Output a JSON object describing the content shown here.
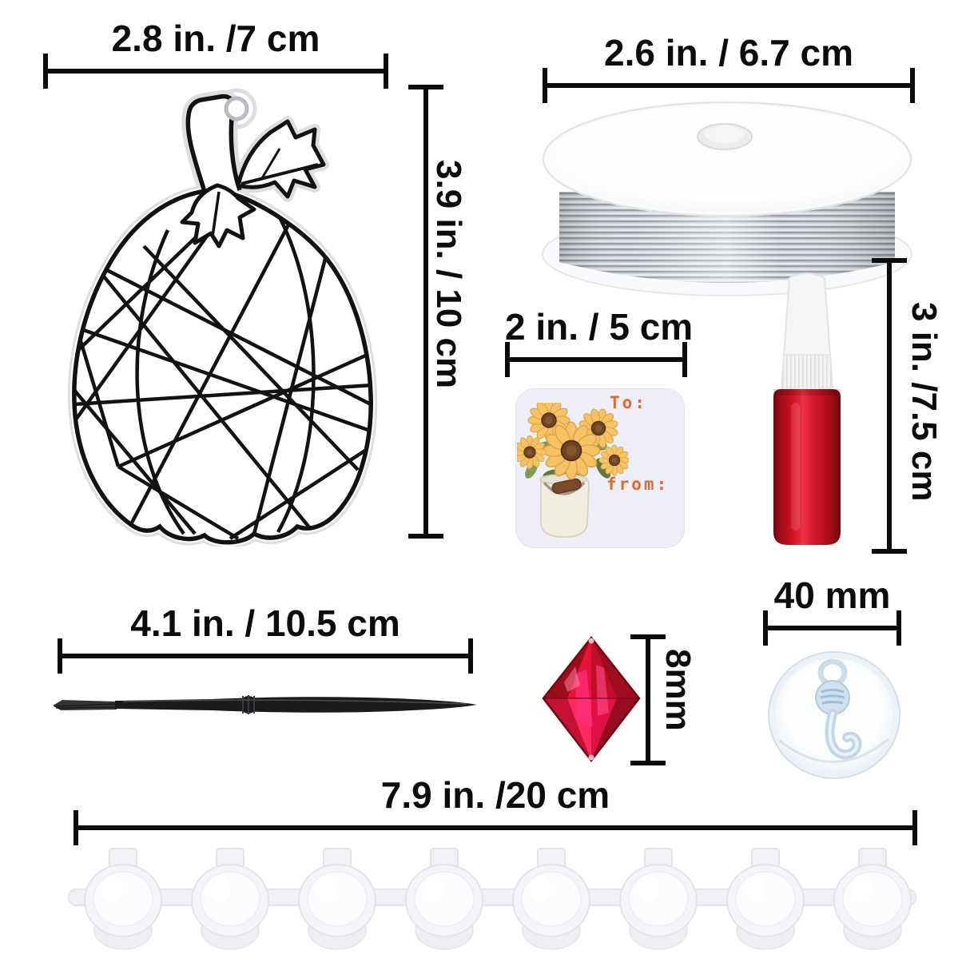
{
  "colors": {
    "background": "#ffffff",
    "dimension_ink": "#0c0c0c",
    "bead_red": "#e01245",
    "glue_body_red": "#d31222",
    "gift_tag_background": "#edeef8",
    "gift_tag_text_orange": "#dd6a2e",
    "wire_silver": "#c9ced4",
    "suction_hook_tint": "#cfe0ef",
    "brush_black": "#1b1b1d"
  },
  "items": {
    "pumpkin_suncatcher": {
      "width_label": "2.8 in. /7 cm",
      "height_label": "3.9 in. / 10 cm"
    },
    "wire_spool": {
      "width_label": "2.6 in. / 6.7 cm"
    },
    "gift_tag": {
      "width_label": "2 in. / 5 cm",
      "to_text": "To:",
      "from_text": "from:"
    },
    "glue_bottle": {
      "height_label": "3 in. /7.5 cm"
    },
    "paint_brush": {
      "length_label": "4.1 in. / 10.5 cm"
    },
    "crystal_bead": {
      "size_label": "8mm"
    },
    "suction_hook": {
      "width_label": "40 mm"
    },
    "paint_pot_strip": {
      "length_label": "7.9 in. /20 cm",
      "pot_count": 8
    }
  }
}
